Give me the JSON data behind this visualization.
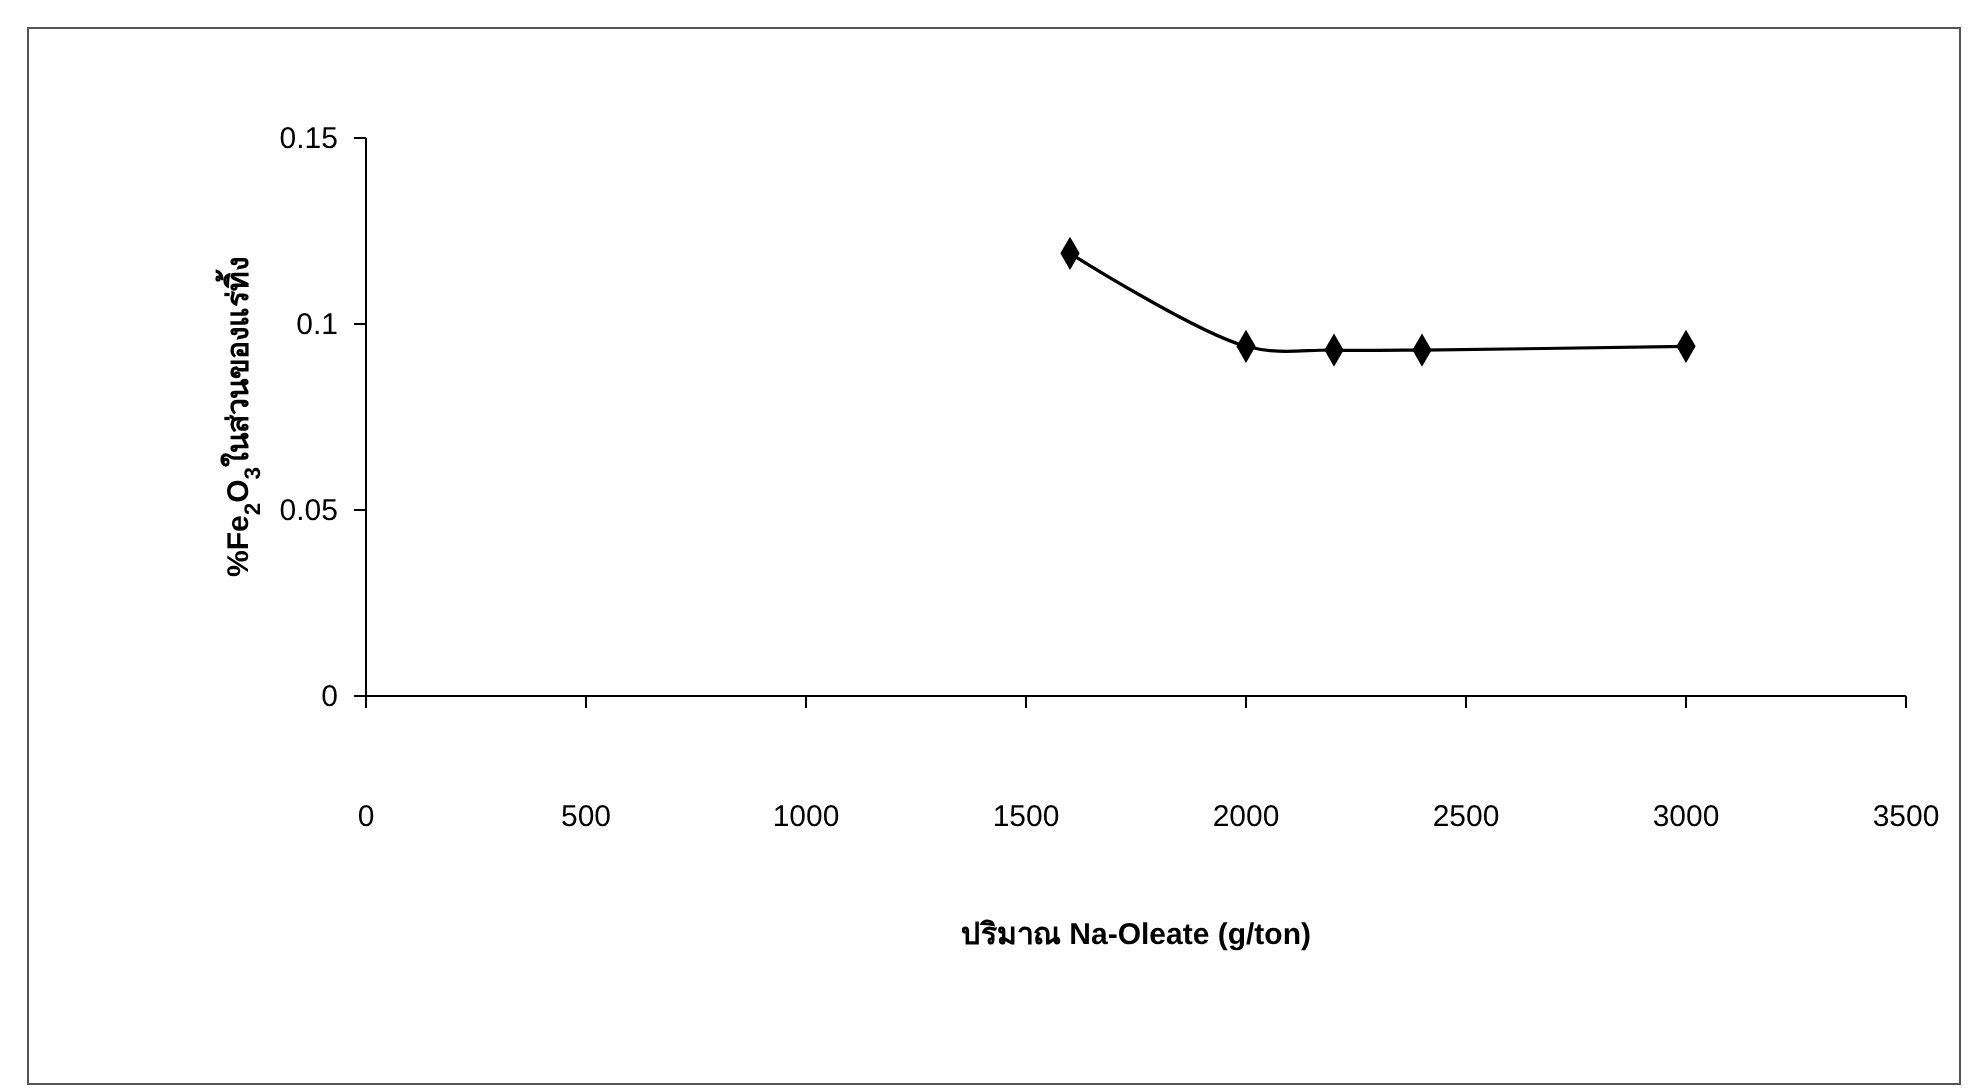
{
  "chart_data": {
    "type": "line",
    "xlabel": "ปริมาณ Na-Oleate (g/ton)",
    "ylabel": "%Fe$_{2}$O$_{3}$ในส่วนของแร่ทิ้ง",
    "x": [
      1600,
      2000,
      2200,
      2400,
      3000
    ],
    "series": [
      {
        "color": "#000000",
        "values": [
          0.119,
          0.094,
          0.093,
          0.093,
          0.094
        ]
      }
    ],
    "xlim": [
      0,
      3500
    ],
    "xticks": [
      0,
      500,
      1000,
      1500,
      2000,
      2500,
      3000,
      3500
    ],
    "ylim": [
      0,
      0.15
    ],
    "yticks": [
      0,
      0.05,
      0.1,
      0.15
    ],
    "grid": false,
    "marker": "diamond",
    "line_style": "solid"
  }
}
